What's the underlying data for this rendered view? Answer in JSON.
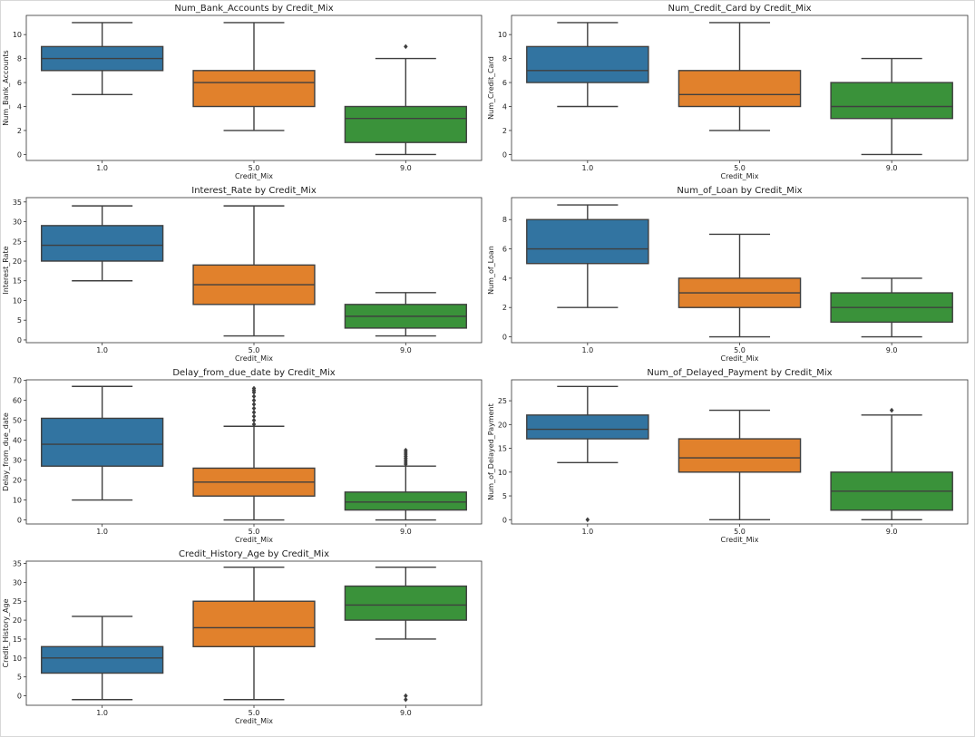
{
  "colors": {
    "blue": "#3274a1",
    "orange": "#e1812c",
    "green": "#3a923a",
    "line": "#3f3f3f",
    "axes": "#333333"
  },
  "chart_data": [
    {
      "type": "box",
      "title": "Num_Bank_Accounts by Credit_Mix",
      "xlabel": "Credit_Mix",
      "ylabel": "Num_Bank_Accounts",
      "categories": [
        "1.0",
        "5.0",
        "9.0"
      ],
      "ylim": [
        -0.5,
        11.6
      ],
      "yticks": [
        0,
        2,
        4,
        6,
        8,
        10
      ],
      "boxes": [
        {
          "q1": 7,
          "median": 8,
          "q3": 9,
          "whislo": 5,
          "whishi": 11,
          "fliers": []
        },
        {
          "q1": 4,
          "median": 6,
          "q3": 7,
          "whislo": 2,
          "whishi": 11,
          "fliers": []
        },
        {
          "q1": 1,
          "median": 3,
          "q3": 4,
          "whislo": 0,
          "whishi": 8,
          "fliers": [
            9
          ]
        }
      ]
    },
    {
      "type": "box",
      "title": "Num_Credit_Card by Credit_Mix",
      "xlabel": "Credit_Mix",
      "ylabel": "Num_Credit_Card",
      "categories": [
        "1.0",
        "5.0",
        "9.0"
      ],
      "ylim": [
        -0.5,
        11.6
      ],
      "yticks": [
        0,
        2,
        4,
        6,
        8,
        10
      ],
      "boxes": [
        {
          "q1": 6,
          "median": 7,
          "q3": 9,
          "whislo": 4,
          "whishi": 11,
          "fliers": []
        },
        {
          "q1": 4,
          "median": 5,
          "q3": 7,
          "whislo": 2,
          "whishi": 11,
          "fliers": []
        },
        {
          "q1": 3,
          "median": 4,
          "q3": 6,
          "whislo": 0,
          "whishi": 8,
          "fliers": []
        }
      ]
    },
    {
      "type": "box",
      "title": "Interest_Rate by Credit_Mix",
      "xlabel": "Credit_Mix",
      "ylabel": "Interest_Rate",
      "categories": [
        "1.0",
        "5.0",
        "9.0"
      ],
      "ylim": [
        -0.7,
        36.1
      ],
      "yticks": [
        0,
        5,
        10,
        15,
        20,
        25,
        30,
        35
      ],
      "boxes": [
        {
          "q1": 20,
          "median": 24,
          "q3": 29,
          "whislo": 15,
          "whishi": 34,
          "fliers": []
        },
        {
          "q1": 9,
          "median": 14,
          "q3": 19,
          "whislo": 1,
          "whishi": 34,
          "fliers": []
        },
        {
          "q1": 3,
          "median": 6,
          "q3": 9,
          "whislo": 1,
          "whishi": 12,
          "fliers": []
        }
      ]
    },
    {
      "type": "box",
      "title": "Num_of_Loan by Credit_Mix",
      "xlabel": "Credit_Mix",
      "ylabel": "Num_of_Loan",
      "categories": [
        "1.0",
        "5.0",
        "9.0"
      ],
      "ylim": [
        -0.4,
        9.5
      ],
      "yticks": [
        0,
        2,
        4,
        6,
        8
      ],
      "boxes": [
        {
          "q1": 5,
          "median": 6,
          "q3": 8,
          "whislo": 2,
          "whishi": 9,
          "fliers": []
        },
        {
          "q1": 2,
          "median": 3,
          "q3": 4,
          "whislo": 0,
          "whishi": 7,
          "fliers": []
        },
        {
          "q1": 1,
          "median": 2,
          "q3": 3,
          "whislo": 0,
          "whishi": 4,
          "fliers": []
        }
      ]
    },
    {
      "type": "box",
      "title": "Delay_from_due_date by Credit_Mix",
      "xlabel": "Credit_Mix",
      "ylabel": "Delay_from_due_date",
      "categories": [
        "1.0",
        "5.0",
        "9.0"
      ],
      "ylim": [
        -2,
        70.3
      ],
      "yticks": [
        0,
        10,
        20,
        30,
        40,
        50,
        60,
        70
      ],
      "boxes": [
        {
          "q1": 27,
          "median": 38,
          "q3": 51,
          "whislo": 10,
          "whishi": 67,
          "fliers": []
        },
        {
          "q1": 12,
          "median": 19,
          "q3": 26,
          "whislo": 0,
          "whishi": 47,
          "fliers": [
            48,
            50,
            52,
            54,
            56,
            58,
            60,
            62,
            64,
            65,
            66
          ]
        },
        {
          "q1": 5,
          "median": 9,
          "q3": 14,
          "whislo": 0,
          "whishi": 27,
          "fliers": [
            28,
            29,
            30,
            31,
            32,
            33,
            34,
            35
          ]
        }
      ]
    },
    {
      "type": "box",
      "title": "Num_of_Delayed_Payment by Credit_Mix",
      "xlabel": "Credit_Mix",
      "ylabel": "Num_of_Delayed_Payment",
      "categories": [
        "1.0",
        "5.0",
        "9.0"
      ],
      "ylim": [
        -0.9,
        29.4
      ],
      "yticks": [
        0,
        5,
        10,
        15,
        20,
        25
      ],
      "boxes": [
        {
          "q1": 17,
          "median": 19,
          "q3": 22,
          "whislo": 12,
          "whishi": 28,
          "fliers": [
            0
          ]
        },
        {
          "q1": 10,
          "median": 13,
          "q3": 17,
          "whislo": 0,
          "whishi": 23,
          "fliers": []
        },
        {
          "q1": 2,
          "median": 6,
          "q3": 10,
          "whislo": 0,
          "whishi": 22,
          "fliers": [
            23
          ]
        }
      ]
    },
    {
      "type": "box",
      "title": "Credit_History_Age by Credit_Mix",
      "xlabel": "Credit_Mix",
      "ylabel": "Credit_History_Age",
      "categories": [
        "1.0",
        "5.0",
        "9.0"
      ],
      "ylim": [
        -2.5,
        35.6
      ],
      "yticks": [
        0,
        5,
        10,
        15,
        20,
        25,
        30,
        35
      ],
      "boxes": [
        {
          "q1": 6,
          "median": 10,
          "q3": 13,
          "whislo": -1,
          "whishi": 21,
          "fliers": []
        },
        {
          "q1": 13,
          "median": 18,
          "q3": 25,
          "whislo": -1,
          "whishi": 34,
          "fliers": []
        },
        {
          "q1": 20,
          "median": 24,
          "q3": 29,
          "whislo": 15,
          "whishi": 34,
          "fliers": [
            0,
            -1
          ]
        }
      ]
    }
  ]
}
